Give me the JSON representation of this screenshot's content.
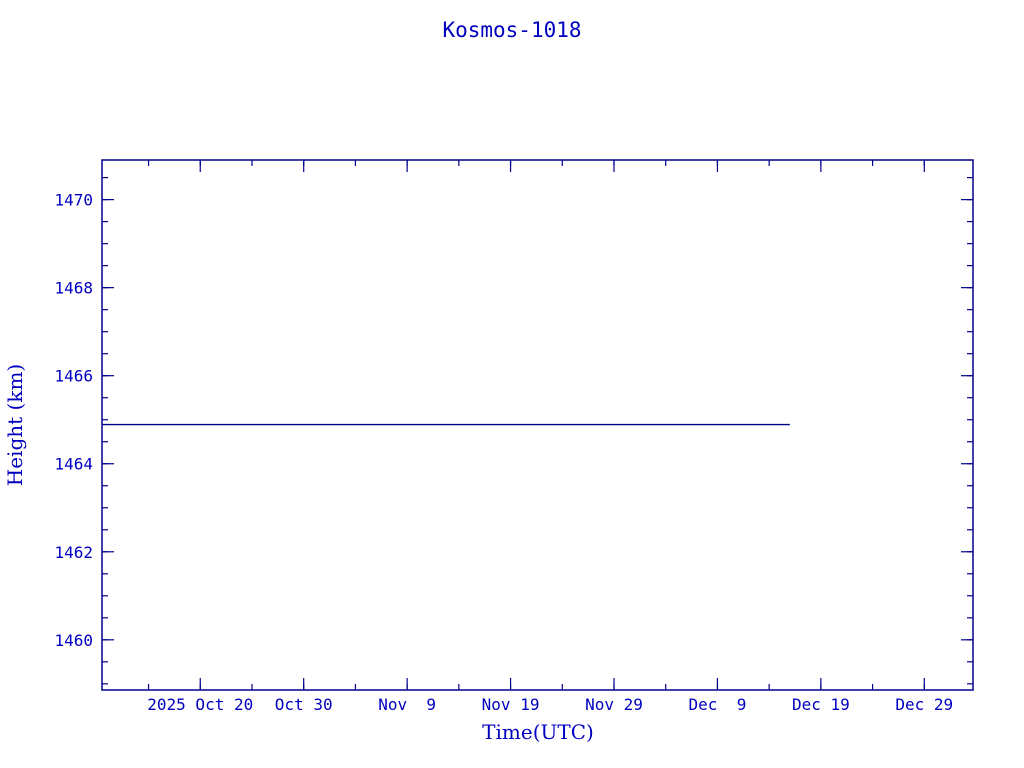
{
  "chart_data": {
    "type": "line",
    "title": "Kosmos-1018",
    "xlabel": "Time(UTC)",
    "ylabel": "Height (km)",
    "xlim": [
      "2025-10-10T12:00",
      "2026-01-02T17:00"
    ],
    "ylim": [
      1458.86,
      1470.9
    ],
    "grid": false,
    "x_ticks": [
      {
        "date": "2025-10-20",
        "label": "2025 Oct 20"
      },
      {
        "date": "2025-10-30",
        "label": "Oct 30"
      },
      {
        "date": "2025-11-09",
        "label": "Nov  9"
      },
      {
        "date": "2025-11-19",
        "label": "Nov 19"
      },
      {
        "date": "2025-11-29",
        "label": "Nov 29"
      },
      {
        "date": "2025-12-09",
        "label": "Dec  9"
      },
      {
        "date": "2025-12-19",
        "label": "Dec 19"
      },
      {
        "date": "2025-12-29",
        "label": "Dec 29"
      }
    ],
    "x_minor_step_days": 5,
    "y_ticks": [
      1460,
      1462,
      1464,
      1466,
      1468,
      1470
    ],
    "y_minor_step": 0.5,
    "series": [
      {
        "x": [
          "2025-10-10T12:00",
          "2025-12-16T00:00"
        ],
        "y": [
          1464.89,
          1464.89
        ]
      }
    ],
    "colors": {
      "text": "#0000c0",
      "axes": "#00008b",
      "line": "#00008b"
    }
  }
}
